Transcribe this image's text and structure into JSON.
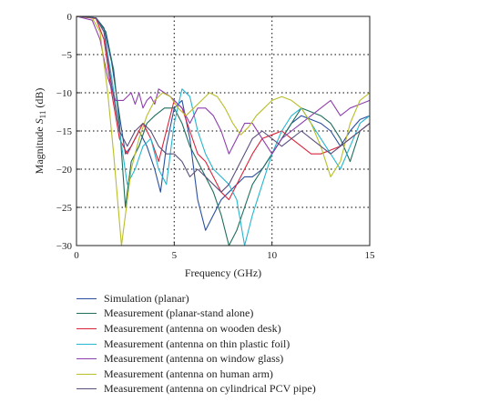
{
  "chart_data": {
    "type": "line",
    "title": "",
    "xlabel": "Frequency (GHz)",
    "ylabel_prefix": "Magnitude ",
    "ylabel_symbol": "S",
    "ylabel_subscript": "11",
    "ylabel_suffix": " (dB)",
    "xlim": [
      0,
      15
    ],
    "ylim": [
      -30,
      0
    ],
    "xticks": [
      0,
      5,
      10,
      15
    ],
    "yticks": [
      0,
      -5,
      -10,
      -15,
      -20,
      -25,
      -30
    ],
    "xtick_labels": [
      "0",
      "5",
      "10",
      "15"
    ],
    "ytick_labels": [
      "0",
      "−5",
      "−10",
      "−15",
      "−20",
      "−25",
      "−30"
    ],
    "grid": "dotted",
    "legend_position": "below",
    "series": [
      {
        "name": "Simulation (planar)",
        "color": "#2b4f9e",
        "x": [
          0,
          1,
          1.4,
          1.8,
          2.2,
          2.5,
          2.8,
          3.2,
          3.6,
          4.0,
          4.3,
          4.6,
          5.0,
          5.4,
          5.8,
          6.2,
          6.6,
          7.0,
          7.4,
          7.8,
          8.2,
          8.6,
          9.0,
          9.5,
          10,
          10.5,
          11,
          11.5,
          12,
          12.5,
          13,
          13.5,
          14,
          14.5,
          15
        ],
        "y": [
          0,
          -0.2,
          -1.5,
          -6,
          -13,
          -18,
          -17,
          -15,
          -17,
          -20,
          -23,
          -17,
          -12,
          -11,
          -16,
          -24,
          -28,
          -26,
          -24,
          -23,
          -22,
          -21,
          -21,
          -20,
          -18,
          -16,
          -14,
          -13,
          -13.5,
          -14,
          -15,
          -17,
          -15,
          -13.5,
          -13
        ]
      },
      {
        "name": "Measurement (planar-stand alone)",
        "color": "#1f6e5c",
        "x": [
          0,
          1,
          1.5,
          1.9,
          2.2,
          2.5,
          2.8,
          3.2,
          3.6,
          4.0,
          4.5,
          5.0,
          5.4,
          5.8,
          6.2,
          6.6,
          7.0,
          7.4,
          7.8,
          8.2,
          8.6,
          9.0,
          9.5,
          10,
          10.5,
          11,
          11.5,
          12,
          12.5,
          13,
          13.5,
          14,
          14.5,
          15
        ],
        "y": [
          0,
          -0.2,
          -2,
          -7,
          -14,
          -25,
          -19,
          -17,
          -14,
          -13,
          -12,
          -12,
          -14,
          -17,
          -19,
          -21,
          -23,
          -26,
          -30,
          -28,
          -25,
          -22,
          -20,
          -18,
          -16,
          -14,
          -12,
          -12.5,
          -13,
          -14,
          -16,
          -19,
          -15,
          -14
        ]
      },
      {
        "name": "Measurement (antenna on wooden desk)",
        "color": "#d9253b",
        "x": [
          0,
          1,
          1.4,
          1.8,
          2.2,
          2.6,
          3.0,
          3.4,
          3.8,
          4.2,
          4.6,
          5.0,
          5.4,
          5.8,
          6.2,
          6.6,
          7.0,
          7.4,
          7.8,
          8.2,
          8.6,
          9.0,
          9.5,
          10,
          10.5,
          11,
          11.5,
          12,
          12.5,
          13,
          13.5,
          14,
          14.5,
          15
        ],
        "y": [
          0,
          -0.3,
          -3,
          -10,
          -16,
          -18,
          -16,
          -14,
          -16,
          -19,
          -15,
          -11,
          -12,
          -15,
          -18,
          -19,
          -21,
          -23,
          -24,
          -22,
          -20,
          -18,
          -16,
          -15.5,
          -15,
          -16,
          -17,
          -18,
          -18,
          -17.5,
          -17,
          -16,
          -15,
          -14
        ]
      },
      {
        "name": "Measurement (antenna on thin plastic foil)",
        "color": "#27b6cf",
        "x": [
          0,
          1,
          1.4,
          1.8,
          2.2,
          2.6,
          3.0,
          3.4,
          3.8,
          4.2,
          4.6,
          5.0,
          5.4,
          5.8,
          6.2,
          6.6,
          7.0,
          7.4,
          7.8,
          8.2,
          8.6,
          9.0,
          9.5,
          10,
          10.5,
          11,
          11.5,
          12,
          12.5,
          13,
          13.5,
          14,
          14.5,
          15
        ],
        "y": [
          0,
          -0.2,
          -2,
          -8,
          -15,
          -22,
          -20,
          -17,
          -16,
          -20,
          -22,
          -14,
          -9.5,
          -10.5,
          -15,
          -18,
          -20,
          -21,
          -22,
          -24,
          -30,
          -26,
          -22,
          -18,
          -15,
          -13,
          -12,
          -14,
          -16,
          -18,
          -20,
          -17,
          -14,
          -13
        ]
      },
      {
        "name": "Measurement (antenna on window glass)",
        "color": "#8e3fae",
        "x": [
          0,
          0.8,
          1.2,
          1.6,
          2.0,
          2.4,
          2.8,
          3.0,
          3.2,
          3.4,
          3.6,
          3.8,
          4.0,
          4.2,
          4.5,
          4.8,
          5.0,
          5.4,
          5.8,
          6.2,
          6.6,
          7.0,
          7.4,
          7.8,
          8.2,
          8.6,
          9.0,
          9.5,
          10,
          10.5,
          11,
          11.5,
          12,
          12.5,
          13,
          13.5,
          14,
          14.5,
          15
        ],
        "y": [
          0,
          -0.5,
          -3,
          -8,
          -11,
          -11,
          -10,
          -11.5,
          -10,
          -12,
          -11,
          -10.5,
          -11.5,
          -9.5,
          -10,
          -10.5,
          -11,
          -12,
          -14,
          -12,
          -12,
          -13,
          -15,
          -18,
          -16,
          -14,
          -14,
          -16,
          -18,
          -16,
          -15,
          -14,
          -13,
          -12,
          -11,
          -13,
          -12,
          -11.5,
          -11
        ]
      },
      {
        "name": "Measurement (antenna on human arm)",
        "color": "#b9be2a",
        "x": [
          0,
          0.8,
          1.2,
          1.6,
          1.9,
          2.1,
          2.3,
          2.5,
          2.8,
          3.2,
          3.6,
          4.0,
          4.4,
          4.8,
          5.2,
          5.6,
          6.0,
          6.4,
          6.8,
          7.2,
          7.6,
          8.0,
          8.4,
          8.8,
          9.2,
          9.6,
          10,
          10.5,
          11,
          11.5,
          12,
          12.5,
          13,
          13.5,
          14,
          14.5,
          15
        ],
        "y": [
          0,
          -0.2,
          -2,
          -10,
          -18,
          -24,
          -30,
          -26,
          -20,
          -16,
          -13,
          -11,
          -10,
          -10.5,
          -12,
          -13,
          -12,
          -11,
          -10,
          -10.5,
          -12,
          -14,
          -15.5,
          -14.5,
          -13,
          -12,
          -11,
          -10.5,
          -11,
          -12,
          -14,
          -17,
          -21,
          -19,
          -14,
          -11,
          -10
        ]
      },
      {
        "name": "Measurement (antenna on cylindrical PCV pipe)",
        "color": "#5a4f7c",
        "x": [
          0,
          1,
          1.4,
          1.8,
          2.2,
          2.6,
          3.0,
          3.4,
          3.8,
          4.2,
          4.6,
          5.0,
          5.4,
          5.8,
          6.2,
          6.6,
          7.0,
          7.4,
          7.8,
          8.2,
          8.6,
          9.0,
          9.5,
          10,
          10.5,
          11,
          11.5,
          12,
          12.5,
          13,
          13.5,
          14,
          14.5,
          15
        ],
        "y": [
          0,
          -0.2,
          -2,
          -9,
          -15,
          -17,
          -15,
          -14,
          -15,
          -17,
          -18,
          -18,
          -19,
          -21,
          -20,
          -21,
          -22,
          -23,
          -22,
          -20,
          -18,
          -16,
          -15,
          -16,
          -17,
          -16,
          -15,
          -16,
          -17,
          -18,
          -17,
          -16,
          -15,
          -14
        ]
      }
    ]
  }
}
